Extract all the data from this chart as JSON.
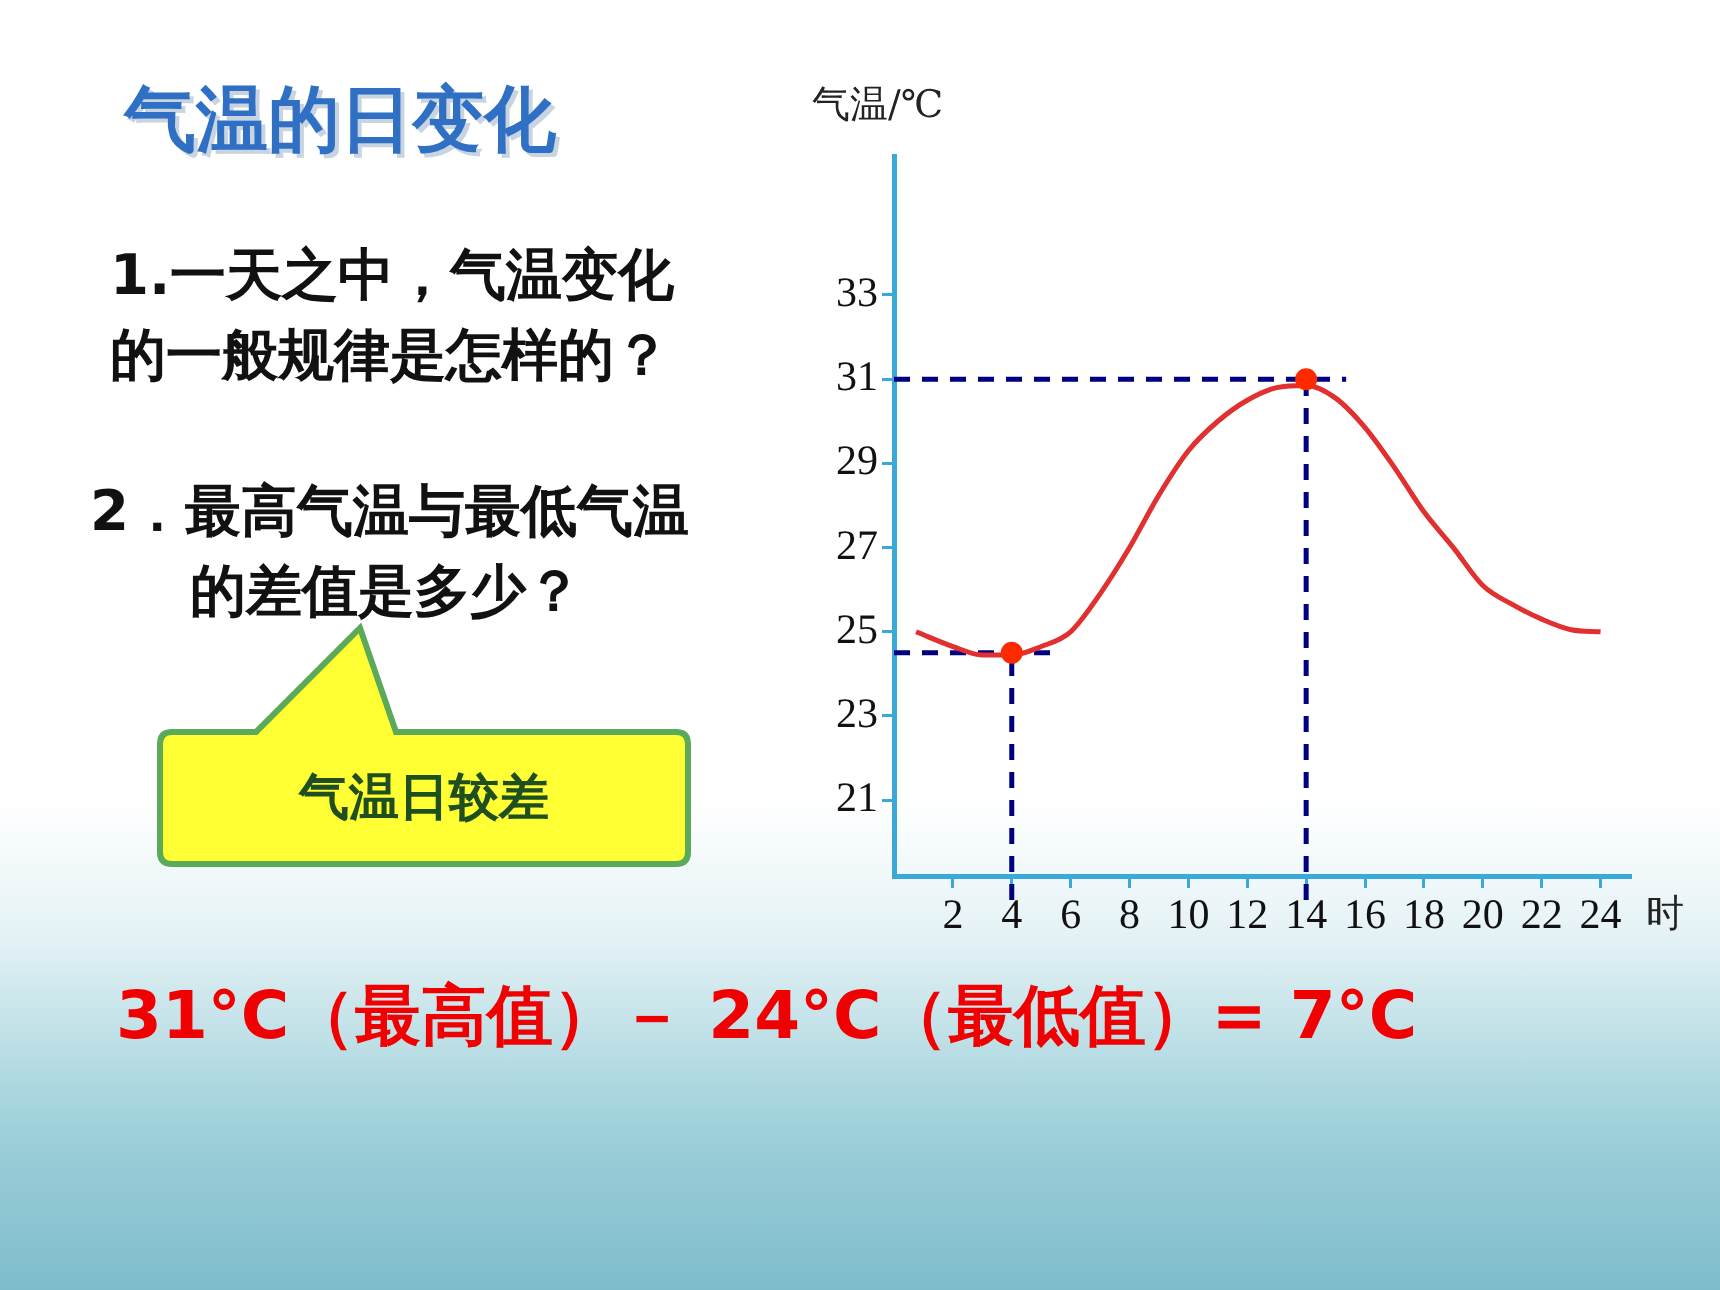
{
  "chart_data": {
    "type": "line",
    "title": "气温的日变化",
    "ylabel": "气温/℃",
    "xlabel": "时",
    "annotations": [
      "1.一天之中，气温变化的一般规律是怎样的？",
      "2．最高气温与最低气温的差值是多少？",
      "气温日较差",
      "31°C（最高值）－ 24°C（最低值）= 7°C"
    ],
    "xlim": [
      0,
      25
    ],
    "xticks": [
      2,
      4,
      6,
      8,
      10,
      12,
      14,
      16,
      18,
      20,
      22,
      24
    ],
    "ylim": [
      19.2,
      36.3
    ],
    "yticks": [
      21,
      23,
      25,
      27,
      29,
      31,
      33
    ],
    "grid": false,
    "legend": false,
    "marker": "none",
    "line_style": "solid",
    "series": [
      {
        "color": "#e03030",
        "x": [
          0.75,
          2,
          3,
          4,
          5,
          6,
          7,
          8,
          9,
          10,
          11,
          12,
          13,
          14,
          15,
          16,
          17,
          18,
          19,
          20,
          21,
          22,
          23,
          24
        ],
        "values": [
          25.0,
          24.65,
          24.45,
          24.45,
          24.65,
          25.0,
          25.9,
          27.0,
          28.25,
          29.3,
          30.0,
          30.5,
          30.8,
          30.85,
          30.55,
          29.85,
          28.9,
          27.85,
          27.0,
          26.1,
          25.65,
          25.3,
          25.05,
          25.0
        ]
      },
      {
        "type": "scatter",
        "color": "#ff2a00",
        "marker": "circle",
        "x": [
          4,
          14
        ],
        "values": [
          24.5,
          31
        ]
      }
    ],
    "ref_lines": [
      {
        "axis": "y",
        "value": 31,
        "color": "#000080",
        "line_style": "dashed"
      },
      {
        "axis": "x",
        "value": 14,
        "color": "#000080",
        "line_style": "dashed"
      },
      {
        "axis": "y",
        "value": 24.5,
        "color": "#000080",
        "line_style": "dashed"
      },
      {
        "axis": "x",
        "value": 4,
        "color": "#000080",
        "line_style": "dashed"
      }
    ]
  }
}
